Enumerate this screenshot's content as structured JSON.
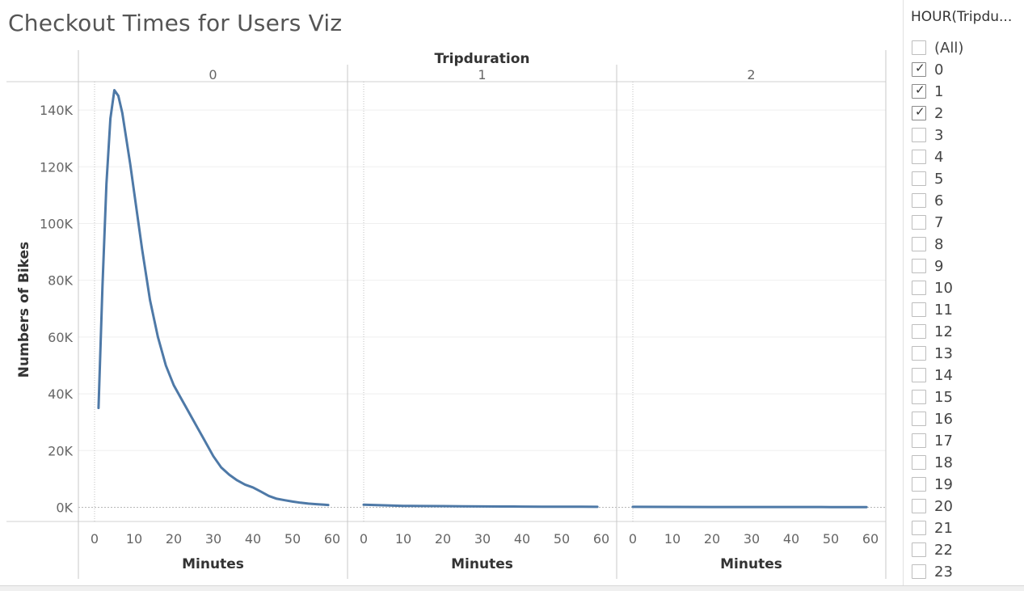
{
  "page": {
    "title": "Checkout Times for Users Viz"
  },
  "filter": {
    "title": "HOUR(Tripdu...",
    "options": [
      {
        "label": "(All)",
        "checked": false
      },
      {
        "label": "0",
        "checked": true
      },
      {
        "label": "1",
        "checked": true
      },
      {
        "label": "2",
        "checked": true
      },
      {
        "label": "3",
        "checked": false
      },
      {
        "label": "4",
        "checked": false
      },
      {
        "label": "5",
        "checked": false
      },
      {
        "label": "6",
        "checked": false
      },
      {
        "label": "7",
        "checked": false
      },
      {
        "label": "8",
        "checked": false
      },
      {
        "label": "9",
        "checked": false
      },
      {
        "label": "10",
        "checked": false
      },
      {
        "label": "11",
        "checked": false
      },
      {
        "label": "12",
        "checked": false
      },
      {
        "label": "13",
        "checked": false
      },
      {
        "label": "14",
        "checked": false
      },
      {
        "label": "15",
        "checked": false
      },
      {
        "label": "16",
        "checked": false
      },
      {
        "label": "17",
        "checked": false
      },
      {
        "label": "18",
        "checked": false
      },
      {
        "label": "19",
        "checked": false
      },
      {
        "label": "20",
        "checked": false
      },
      {
        "label": "21",
        "checked": false
      },
      {
        "label": "22",
        "checked": false
      },
      {
        "label": "23",
        "checked": false
      }
    ]
  },
  "chart_data": {
    "type": "line",
    "title": "Checkout Times for Users Viz",
    "facet_label": "Tripduration",
    "xlabel": "Minutes",
    "ylabel": "Numbers of Bikes",
    "xlim": [
      -2,
      61
    ],
    "ylim": [
      -5000,
      150000
    ],
    "x_ticks": [
      0,
      10,
      20,
      30,
      40,
      50,
      60
    ],
    "y_ticks": [
      0,
      20000,
      40000,
      60000,
      80000,
      100000,
      120000,
      140000
    ],
    "y_tick_labels": [
      "0K",
      "20K",
      "40K",
      "60K",
      "80K",
      "100K",
      "120K",
      "140K"
    ],
    "grid": true,
    "line_color": "#4e79a7",
    "panels": [
      {
        "label": "0",
        "x": [
          1,
          2,
          3,
          4,
          5,
          6,
          7,
          8,
          9,
          10,
          12,
          14,
          16,
          18,
          20,
          22,
          24,
          26,
          28,
          30,
          32,
          34,
          36,
          38,
          40,
          42,
          44,
          46,
          48,
          50,
          52,
          54,
          56,
          58,
          59
        ],
        "y": [
          35000,
          78000,
          114000,
          137000,
          147000,
          145000,
          139000,
          130000,
          121000,
          111000,
          91000,
          73000,
          60000,
          50000,
          43000,
          38000,
          33000,
          28000,
          23000,
          18000,
          14000,
          11500,
          9500,
          8000,
          7000,
          5500,
          4000,
          3000,
          2500,
          2000,
          1600,
          1300,
          1100,
          900,
          800
        ]
      },
      {
        "label": "1",
        "x": [
          0,
          5,
          10,
          15,
          20,
          25,
          30,
          35,
          40,
          45,
          50,
          55,
          59
        ],
        "y": [
          900,
          700,
          500,
          450,
          400,
          350,
          300,
          280,
          250,
          220,
          200,
          180,
          150
        ]
      },
      {
        "label": "2",
        "x": [
          0,
          10,
          20,
          30,
          40,
          50,
          59
        ],
        "y": [
          150,
          120,
          100,
          100,
          90,
          80,
          70
        ]
      }
    ]
  }
}
